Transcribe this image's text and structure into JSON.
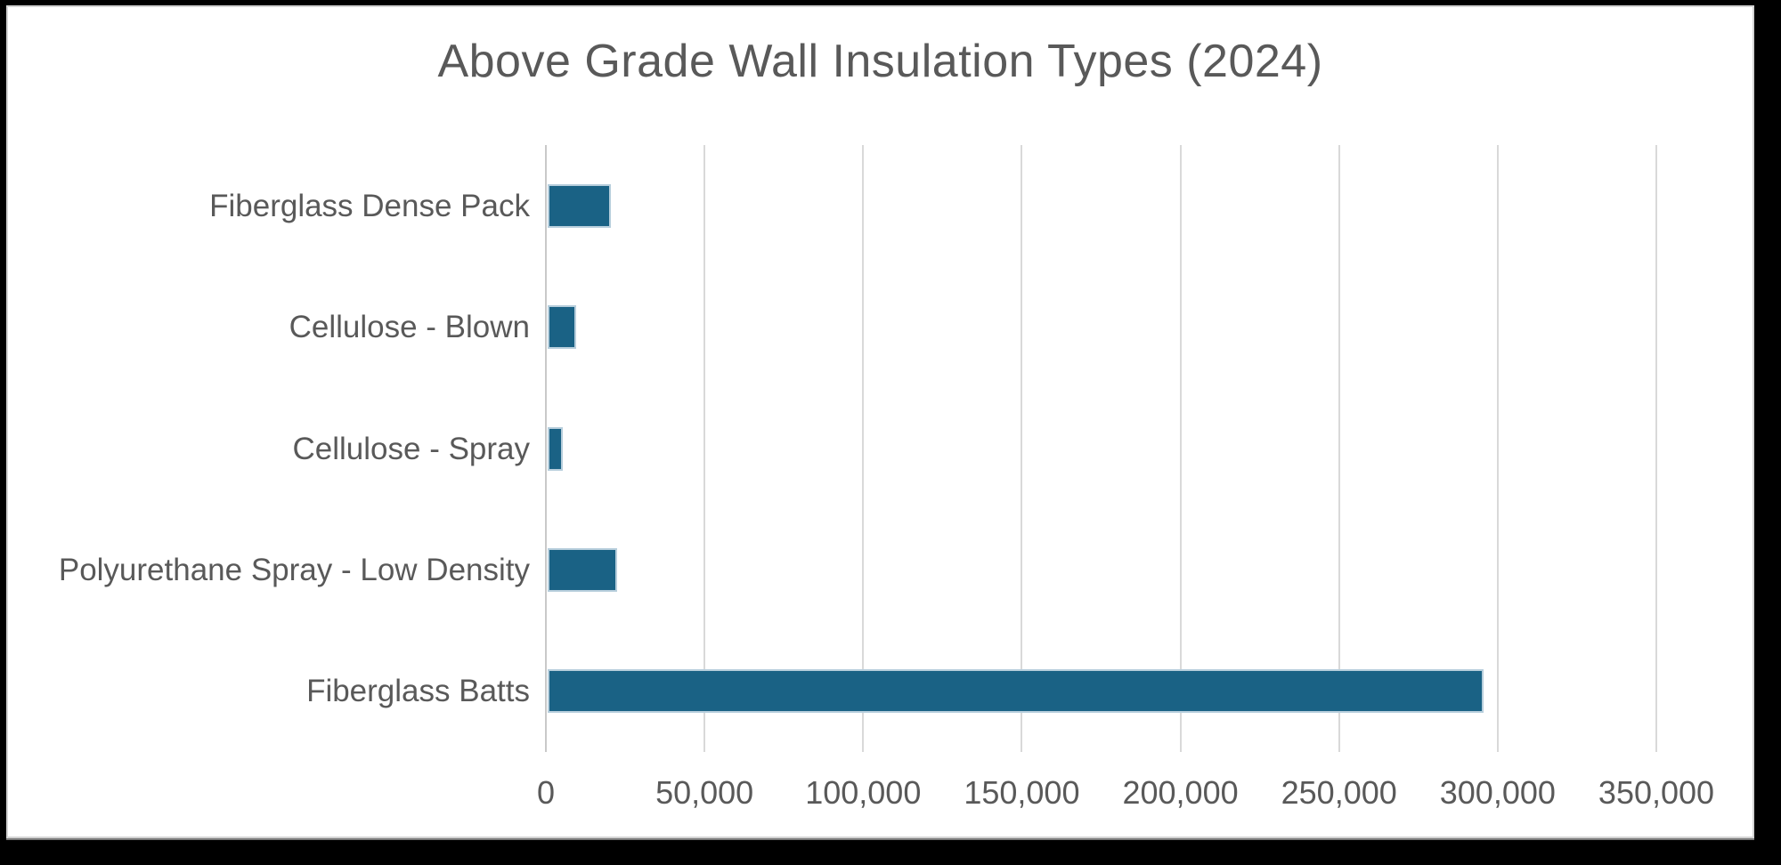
{
  "chart_data": {
    "type": "bar",
    "orientation": "horizontal",
    "title": "Above Grade Wall Insulation Types (2024)",
    "categories": [
      "Fiberglass Dense Pack",
      "Cellulose - Blown",
      "Cellulose - Spray",
      "Polyurethane Spray - Low Density",
      "Fiberglass Batts"
    ],
    "values": [
      20000,
      9000,
      4700,
      22000,
      295000
    ],
    "xlabel": "",
    "ylabel": "",
    "xlim": [
      0,
      350000
    ],
    "x_ticks": [
      {
        "value": 0,
        "label": "0"
      },
      {
        "value": 50000,
        "label": "50,000"
      },
      {
        "value": 100000,
        "label": "100,000"
      },
      {
        "value": 150000,
        "label": "150,000"
      },
      {
        "value": 200000,
        "label": "200,000"
      },
      {
        "value": 250000,
        "label": "250,000"
      },
      {
        "value": 300000,
        "label": "300,000"
      },
      {
        "value": 350000,
        "label": "350,000"
      }
    ],
    "legend": null,
    "grid": "vertical",
    "colors": {
      "bar_fill": "#1A6285",
      "bar_border": "#B7CEDC",
      "text": "#595959",
      "gridline": "#D9D9D9",
      "axis_line": "#C9C9C9",
      "plot_background": "#FFFFFF",
      "outer_background": "#000000"
    }
  }
}
